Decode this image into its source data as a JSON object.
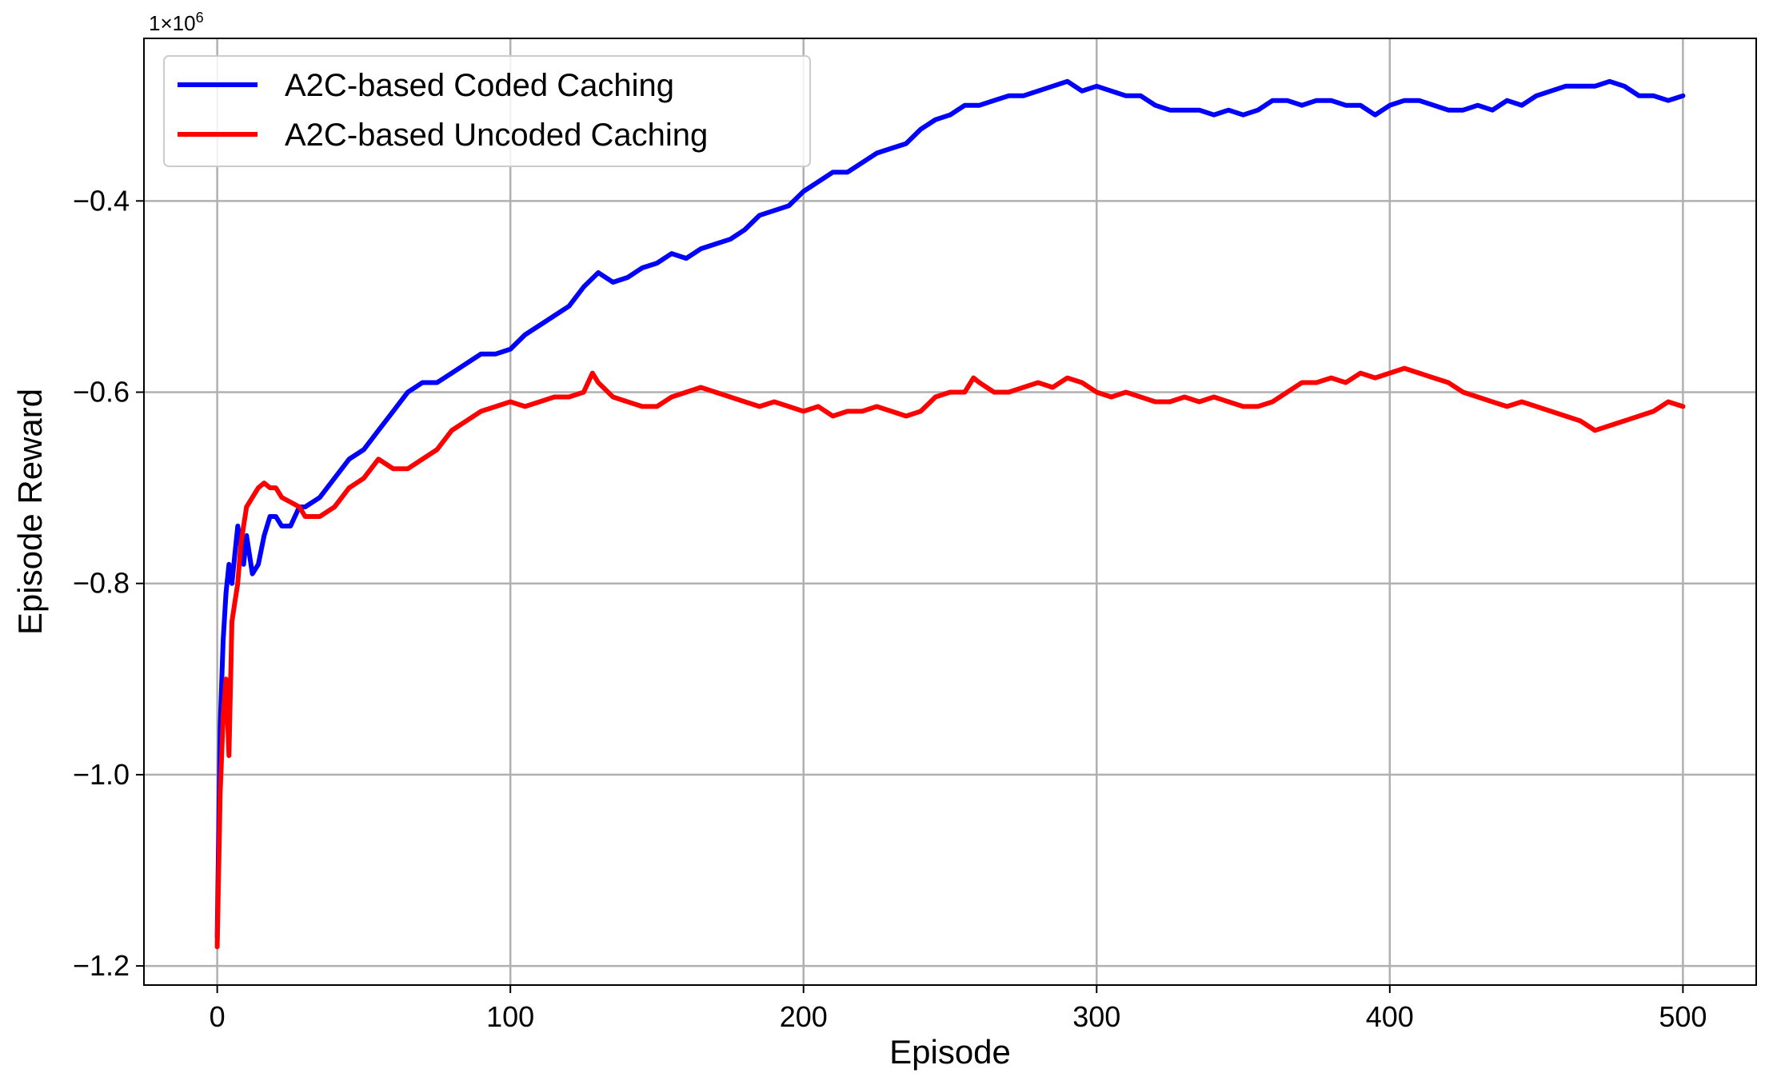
{
  "chart_data": {
    "type": "line",
    "xlabel": "Episode",
    "ylabel": "Episode Reward",
    "y_offset_label": "1×10",
    "y_offset_exponent": "6",
    "xlim": [
      -25,
      525
    ],
    "ylim": [
      -1.22,
      -0.23
    ],
    "x_ticks": [
      0,
      100,
      200,
      300,
      400,
      500
    ],
    "x_tick_labels": [
      "0",
      "100",
      "200",
      "300",
      "400",
      "500"
    ],
    "y_ticks": [
      -1.2,
      -1.0,
      -0.8,
      -0.6,
      -0.4
    ],
    "y_tick_labels": [
      "−1.2",
      "−1.0",
      "−0.8",
      "−0.6",
      "−0.4"
    ],
    "grid": true,
    "legend_position": "top-left",
    "series": [
      {
        "name": "A2C-based Coded Caching",
        "color": "#0000ff",
        "x": [
          0,
          1,
          2,
          3,
          4,
          5,
          6,
          7,
          8,
          9,
          10,
          12,
          14,
          16,
          18,
          20,
          22,
          25,
          28,
          30,
          35,
          40,
          45,
          50,
          55,
          60,
          65,
          70,
          75,
          80,
          85,
          90,
          95,
          100,
          105,
          110,
          115,
          120,
          125,
          130,
          135,
          140,
          145,
          150,
          155,
          160,
          165,
          170,
          175,
          180,
          185,
          190,
          195,
          200,
          205,
          210,
          215,
          220,
          225,
          230,
          235,
          240,
          245,
          250,
          255,
          260,
          265,
          270,
          275,
          280,
          285,
          290,
          295,
          300,
          305,
          310,
          315,
          320,
          325,
          330,
          335,
          340,
          345,
          350,
          355,
          360,
          365,
          370,
          375,
          380,
          385,
          390,
          395,
          400,
          405,
          410,
          415,
          420,
          425,
          430,
          435,
          440,
          445,
          450,
          455,
          460,
          465,
          470,
          475,
          480,
          485,
          490,
          495,
          500
        ],
        "y": [
          -1.17,
          -0.95,
          -0.86,
          -0.81,
          -0.78,
          -0.8,
          -0.77,
          -0.74,
          -0.76,
          -0.78,
          -0.75,
          -0.79,
          -0.78,
          -0.75,
          -0.73,
          -0.73,
          -0.74,
          -0.74,
          -0.72,
          -0.72,
          -0.71,
          -0.69,
          -0.67,
          -0.66,
          -0.64,
          -0.62,
          -0.6,
          -0.59,
          -0.59,
          -0.58,
          -0.57,
          -0.56,
          -0.56,
          -0.555,
          -0.54,
          -0.53,
          -0.52,
          -0.51,
          -0.49,
          -0.475,
          -0.485,
          -0.48,
          -0.47,
          -0.465,
          -0.455,
          -0.46,
          -0.45,
          -0.445,
          -0.44,
          -0.43,
          -0.415,
          -0.41,
          -0.405,
          -0.39,
          -0.38,
          -0.37,
          -0.37,
          -0.36,
          -0.35,
          -0.345,
          -0.34,
          -0.325,
          -0.315,
          -0.31,
          -0.3,
          -0.3,
          -0.295,
          -0.29,
          -0.29,
          -0.285,
          -0.28,
          -0.275,
          -0.285,
          -0.28,
          -0.285,
          -0.29,
          -0.29,
          -0.3,
          -0.305,
          -0.305,
          -0.305,
          -0.31,
          -0.305,
          -0.31,
          -0.305,
          -0.295,
          -0.295,
          -0.3,
          -0.295,
          -0.295,
          -0.3,
          -0.3,
          -0.31,
          -0.3,
          -0.295,
          -0.295,
          -0.3,
          -0.305,
          -0.305,
          -0.3,
          -0.305,
          -0.295,
          -0.3,
          -0.29,
          -0.285,
          -0.28,
          -0.28,
          -0.28,
          -0.275,
          -0.28,
          -0.29,
          -0.29,
          -0.295,
          -0.29
        ]
      },
      {
        "name": "A2C-based Uncoded Caching",
        "color": "#ff0000",
        "x": [
          0,
          1,
          2,
          3,
          4,
          5,
          6,
          7,
          8,
          9,
          10,
          12,
          14,
          16,
          18,
          20,
          22,
          25,
          28,
          30,
          35,
          40,
          45,
          50,
          55,
          60,
          65,
          70,
          75,
          80,
          85,
          90,
          95,
          100,
          105,
          110,
          115,
          120,
          125,
          128,
          130,
          135,
          140,
          145,
          150,
          155,
          160,
          165,
          170,
          175,
          180,
          185,
          190,
          195,
          200,
          205,
          210,
          215,
          220,
          225,
          230,
          235,
          240,
          245,
          250,
          255,
          258,
          260,
          265,
          270,
          275,
          280,
          285,
          290,
          295,
          300,
          305,
          310,
          315,
          320,
          325,
          330,
          335,
          340,
          345,
          350,
          355,
          360,
          365,
          370,
          375,
          380,
          385,
          390,
          395,
          400,
          405,
          410,
          415,
          420,
          425,
          430,
          435,
          440,
          445,
          450,
          455,
          460,
          465,
          470,
          475,
          480,
          485,
          490,
          495,
          500
        ],
        "y": [
          -1.18,
          -1.02,
          -0.94,
          -0.9,
          -0.98,
          -0.84,
          -0.82,
          -0.8,
          -0.76,
          -0.74,
          -0.72,
          -0.71,
          -0.7,
          -0.695,
          -0.7,
          -0.7,
          -0.71,
          -0.715,
          -0.72,
          -0.73,
          -0.73,
          -0.72,
          -0.7,
          -0.69,
          -0.67,
          -0.68,
          -0.68,
          -0.67,
          -0.66,
          -0.64,
          -0.63,
          -0.62,
          -0.615,
          -0.61,
          -0.615,
          -0.61,
          -0.605,
          -0.605,
          -0.6,
          -0.58,
          -0.59,
          -0.605,
          -0.61,
          -0.615,
          -0.615,
          -0.605,
          -0.6,
          -0.595,
          -0.6,
          -0.605,
          -0.61,
          -0.615,
          -0.61,
          -0.615,
          -0.62,
          -0.615,
          -0.625,
          -0.62,
          -0.62,
          -0.615,
          -0.62,
          -0.625,
          -0.62,
          -0.605,
          -0.6,
          -0.6,
          -0.585,
          -0.59,
          -0.6,
          -0.6,
          -0.595,
          -0.59,
          -0.595,
          -0.585,
          -0.59,
          -0.6,
          -0.605,
          -0.6,
          -0.605,
          -0.61,
          -0.61,
          -0.605,
          -0.61,
          -0.605,
          -0.61,
          -0.615,
          -0.615,
          -0.61,
          -0.6,
          -0.59,
          -0.59,
          -0.585,
          -0.59,
          -0.58,
          -0.585,
          -0.58,
          -0.575,
          -0.58,
          -0.585,
          -0.59,
          -0.6,
          -0.605,
          -0.61,
          -0.615,
          -0.61,
          -0.615,
          -0.62,
          -0.625,
          -0.63,
          -0.64,
          -0.635,
          -0.63,
          -0.625,
          -0.62,
          -0.61,
          -0.615
        ]
      }
    ]
  }
}
